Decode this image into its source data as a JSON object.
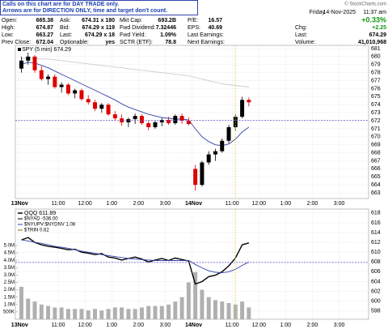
{
  "header": {
    "note": [
      "Calls on this chart are for DAY TRADE only.",
      "Arrows are for DIRECTION ONLY, time and target don't count."
    ],
    "rows": [
      [
        "Open:",
        "665.38",
        "Ask:",
        "674.31 x 180",
        "Mkt Cap:",
        "693.2B",
        "P/E:",
        "16.57"
      ],
      [
        "High:",
        "674.87",
        "Bid:",
        "674.29 x 119",
        "Fwd Dividend:",
        "7.32446",
        "EPS:",
        "40.69"
      ],
      [
        "Low:",
        "663.27",
        "Last:",
        "674.29 x 18",
        "Fwd Yield:",
        "1.09%",
        "Last Earnings:",
        ""
      ],
      [
        "Prev Close:",
        "672.04",
        "Optionable:",
        "yes",
        "SCTR (ETF):",
        "78.8",
        "Next Earnings:",
        ""
      ]
    ],
    "brand": "© StockCharts.com",
    "datetime": [
      "Friday",
      "14-Nov-2025",
      "11:37 am"
    ],
    "pct": "+0.33%",
    "stats": [
      [
        "Chg:",
        "+2.25"
      ],
      [
        "Last:",
        "674.29"
      ],
      [
        "Volume:",
        "41,010,968"
      ]
    ]
  },
  "chart_data": [
    {
      "type": "candlestick",
      "title": "SPY (5 min) 674.29",
      "x": [
        0.125,
        0.375,
        0.625,
        0.875,
        1.125,
        1.375,
        1.625,
        1.875,
        2.125,
        2.375,
        2.625,
        2.875,
        3.125,
        3.375,
        3.625,
        3.875,
        4.125,
        4.375,
        4.625,
        4.875,
        5.125,
        5.375,
        5.625,
        5.875,
        6.125,
        6.375,
        6.625,
        6.875,
        7.125,
        7.375,
        7.625,
        7.875,
        8.125,
        8.375,
        8.625
      ],
      "open": [
        678.5,
        679.5,
        680,
        678.3,
        677.2,
        677.5,
        676.2,
        676.5,
        675.4,
        675.8,
        674.7,
        674.3,
        673.5,
        674,
        672.8,
        672.3,
        671.8,
        672.2,
        672.6,
        671.7,
        671.2,
        671.8,
        672.1,
        671.7,
        672.6,
        672,
        666,
        664,
        666.8,
        667.8,
        668.2,
        669.5,
        671.2,
        672.5,
        674.6
      ],
      "high": [
        680,
        680.5,
        680.2,
        678.8,
        677.8,
        677.8,
        676.8,
        676.7,
        676,
        676,
        675.2,
        674.6,
        674.2,
        674.2,
        673.2,
        672.8,
        672.4,
        672.9,
        672.8,
        672,
        672,
        672.4,
        672.5,
        672.8,
        672.9,
        672.4,
        666.5,
        667,
        668.2,
        668.5,
        669.8,
        671.5,
        672.8,
        675,
        674.9
      ],
      "low": [
        678,
        679,
        678,
        677,
        676.5,
        676,
        675.5,
        675.2,
        674.8,
        674.5,
        674,
        673.2,
        673,
        672.6,
        672,
        671.4,
        671.2,
        671.6,
        671.5,
        670.8,
        671,
        671.3,
        671.5,
        671.5,
        671.6,
        671.4,
        663.3,
        663.8,
        666.5,
        667,
        668,
        669.2,
        670.8,
        672.3,
        673.8
      ],
      "close": [
        679.5,
        680,
        678.3,
        677.2,
        677.5,
        676.2,
        676.5,
        675.4,
        675.8,
        674.7,
        674.3,
        673.5,
        674,
        672.8,
        672.3,
        671.8,
        672.2,
        672.6,
        671.7,
        671.2,
        671.8,
        672.1,
        671.7,
        672.6,
        672,
        671.6,
        664,
        666.8,
        667.8,
        668.2,
        669.5,
        671.2,
        672.5,
        674.6,
        674.3
      ],
      "up_color": "#000000",
      "down_color": "#dd0000",
      "series": [
        {
          "color": "#3344aa",
          "values": [
            679,
            679.3,
            679.2,
            678.9,
            678.6,
            678.2,
            677.8,
            677.4,
            677,
            676.6,
            676.2,
            675.8,
            675.4,
            675,
            674.6,
            674.1,
            673.7,
            673.4,
            673.1,
            672.8,
            672.6,
            672.4,
            672.3,
            672.2,
            672.2,
            672.1,
            671,
            670,
            669.4,
            669,
            668.9,
            669.1,
            669.7,
            670.6,
            671.2
          ]
        },
        {
          "color": "#cccccc",
          "values": [
            679.8,
            679.8,
            679.8,
            679.7,
            679.7,
            679.6,
            679.5,
            679.4,
            679.3,
            679.2,
            679.1,
            679,
            678.9,
            678.8,
            678.7,
            678.6,
            678.5,
            678.4,
            678.3,
            678.2,
            678.1,
            678,
            677.9,
            677.8,
            677.7,
            677.6,
            677.4,
            677.2,
            677,
            676.8,
            676.6,
            676.5,
            676.4,
            676.3,
            676.2
          ]
        }
      ],
      "hline": 672.04,
      "vline": 8.12,
      "xlim": [
        -0.1,
        13.1
      ],
      "xticks": [
        {
          "value": 0,
          "label": "13Nov"
        },
        {
          "value": 1.5,
          "label": "11:00"
        },
        {
          "value": 2.5,
          "label": "12:00"
        },
        {
          "value": 3.5,
          "label": "1:00"
        },
        {
          "value": 4.5,
          "label": "2:00"
        },
        {
          "value": 5.5,
          "label": "3:00"
        },
        {
          "value": 6.5,
          "label": "14Nov"
        },
        {
          "value": 8,
          "label": "11:00"
        },
        {
          "value": 9,
          "label": "12:00"
        },
        {
          "value": 10,
          "label": "1:00"
        },
        {
          "value": 11,
          "label": "2:00"
        },
        {
          "value": 12,
          "label": "3:00"
        }
      ],
      "ylim": [
        662.3,
        681.4
      ],
      "yticks": [
        663,
        664,
        665,
        666,
        667,
        668,
        669,
        670,
        671,
        672,
        673,
        674,
        675,
        676,
        677,
        678,
        679,
        680,
        681
      ],
      "grid": true
    },
    {
      "type": "line",
      "indicators": [
        "$NYAD -536.00",
        "$NYUPV:$NYDNV 1.08",
        "$TRIN 0.62"
      ],
      "x": [
        0.125,
        0.375,
        0.625,
        0.875,
        1.125,
        1.375,
        1.625,
        1.875,
        2.125,
        2.375,
        2.625,
        2.875,
        3.125,
        3.375,
        3.625,
        3.875,
        4.125,
        4.375,
        4.625,
        4.875,
        5.125,
        5.375,
        5.625,
        5.875,
        6.125,
        6.375,
        6.625,
        6.875,
        7.125,
        7.375,
        7.625,
        7.875,
        8.125,
        8.375,
        8.625
      ],
      "series": [
        {
          "name": "QQQ 611.89",
          "color": "#000000",
          "axis": "y2",
          "values": [
            612.5,
            613,
            612,
            611.5,
            611.2,
            611,
            610.8,
            610.5,
            610.6,
            610,
            609.8,
            609.5,
            609.7,
            609,
            608.8,
            608.4,
            608.7,
            609,
            608.6,
            608,
            608.4,
            608.7,
            608.3,
            608.8,
            608.5,
            608.2,
            603.5,
            604,
            605,
            605.3,
            606,
            607.2,
            608.8,
            611.5,
            611.89
          ]
        },
        {
          "color": "#3344aa",
          "axis": "y2",
          "values": [
            612.5,
            612.3,
            612,
            611.8,
            611.5,
            611.2,
            611,
            610.8,
            610.5,
            610.2,
            610,
            609.8,
            609.5,
            609.3,
            609.1,
            608.9,
            608.7,
            608.6,
            608.5,
            608.4,
            608.3,
            608.3,
            608.3,
            608.3,
            608.3,
            608.3,
            607.5,
            606.8,
            606.2,
            605.9,
            605.8,
            606,
            606.5,
            607.3,
            608
          ]
        },
        {
          "type": "bar",
          "color": "#b0b0b0",
          "axis": "y",
          "values": [
            2200000,
            1400000,
            1200000,
            1000000,
            900000,
            800000,
            800000,
            700000,
            700000,
            700000,
            600000,
            700000,
            600000,
            700000,
            800000,
            800000,
            700000,
            700000,
            800000,
            900000,
            900000,
            900000,
            1000000,
            1200000,
            1500000,
            2500000,
            3200000,
            2000000,
            1500000,
            1300000,
            1200000,
            1100000,
            1000000,
            1200000,
            800000
          ]
        }
      ],
      "hline": 607.9,
      "vline": 8.12,
      "xlim": [
        -0.1,
        13.1
      ],
      "xticks": [
        {
          "value": 0,
          "label": "13Nov"
        },
        {
          "value": 1.5,
          "label": "11:00"
        },
        {
          "value": 2.5,
          "label": "12:00"
        },
        {
          "value": 3.5,
          "label": "1:00"
        },
        {
          "value": 4.5,
          "label": "2:00"
        },
        {
          "value": 5.5,
          "label": "3:00"
        },
        {
          "value": 6.5,
          "label": "14Nov"
        },
        {
          "value": 8,
          "label": "11:00"
        },
        {
          "value": 9,
          "label": "12:00"
        },
        {
          "value": 10,
          "label": "1:00"
        },
        {
          "value": 11,
          "label": "2:00"
        },
        {
          "value": 12,
          "label": "3:00"
        }
      ],
      "ylim": [
        0,
        7470000
      ],
      "yticks": [
        {
          "value": 500000,
          "label": "500K"
        },
        {
          "value": 1000000,
          "label": "1.0M"
        },
        {
          "value": 1500000,
          "label": "1.5M"
        },
        {
          "value": 2000000,
          "label": "2.0M"
        },
        {
          "value": 2500000,
          "label": "2.5M"
        },
        {
          "value": 3000000,
          "label": "3.0M"
        },
        {
          "value": 3500000,
          "label": "3.5M"
        },
        {
          "value": 4000000,
          "label": "4.0M"
        },
        {
          "value": 4500000,
          "label": "4.5M"
        },
        {
          "value": 5000000,
          "label": "5.0M"
        }
      ],
      "y2lim": [
        596.3,
        618.8
      ],
      "y2ticks": [
        598,
        600,
        602,
        604,
        606,
        608,
        610,
        612,
        614,
        616,
        618
      ],
      "grid": true
    }
  ]
}
